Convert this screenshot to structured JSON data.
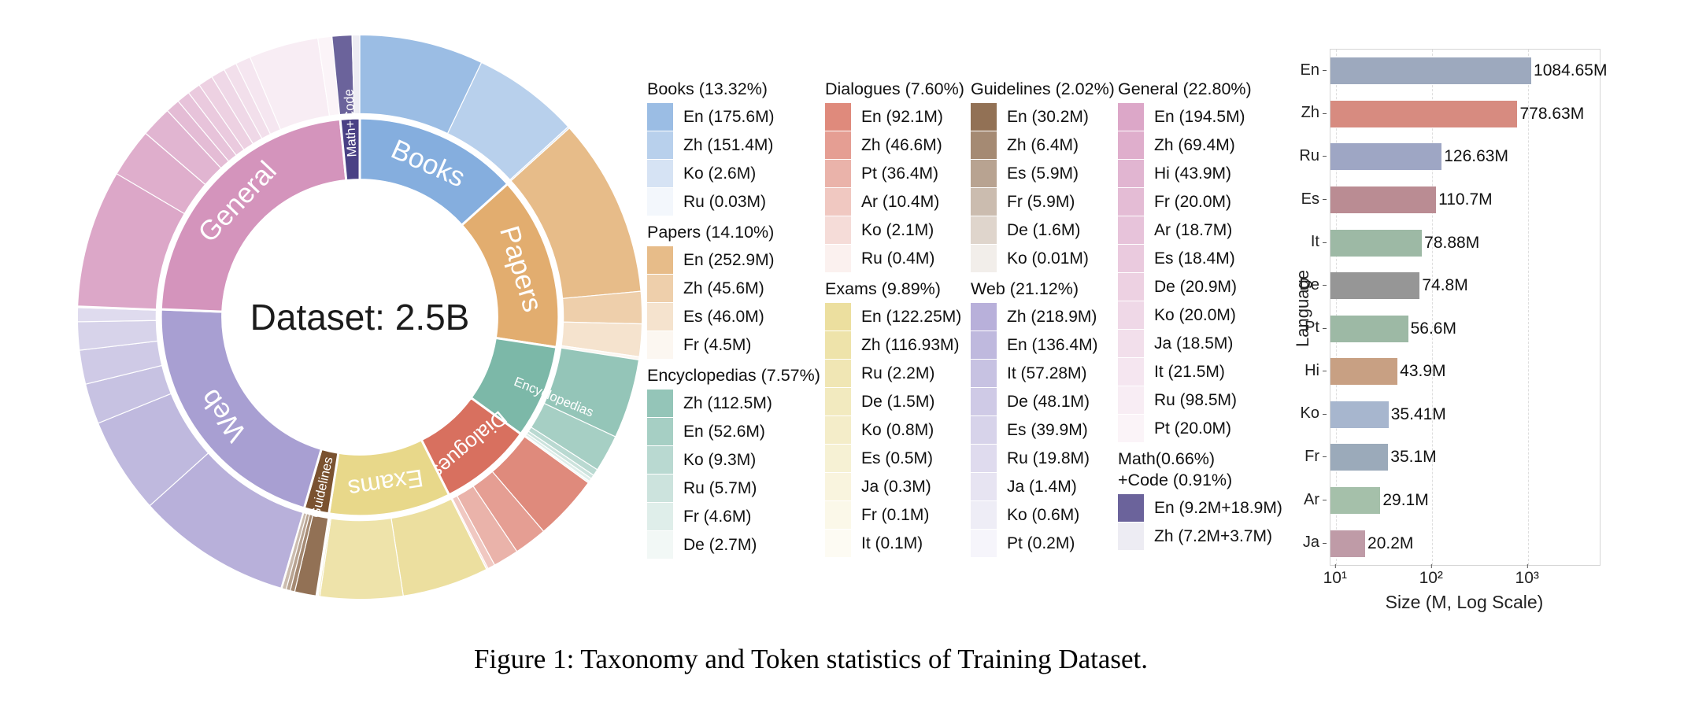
{
  "figure": {
    "caption": "Figure 1: Taxonomy and Token statistics of Training Dataset."
  },
  "chart_data": [
    {
      "type": "sunburst",
      "center_label": "Dataset: 2.5B",
      "rings": [
        "category",
        "language"
      ],
      "categories": [
        {
          "name": "Books",
          "legend_title": "Books (13.32%)",
          "pct": 13.32,
          "color": "#85aede",
          "legend_col": 0,
          "label_style": "tangential",
          "label_size": 36,
          "languages": [
            {
              "code": "En",
              "size_m": 175.6,
              "label": "En (175.6M)"
            },
            {
              "code": "Zh",
              "size_m": 151.4,
              "label": "Zh (151.4M)"
            },
            {
              "code": "Ko",
              "size_m": 2.6,
              "label": "Ko (2.6M)"
            },
            {
              "code": "Ru",
              "size_m": 0.03,
              "label": "Ru (0.03M)"
            }
          ]
        },
        {
          "name": "Papers",
          "legend_title": "Papers (14.10%)",
          "pct": 14.1,
          "color": "#e2ad6f",
          "legend_col": 0,
          "label_style": "tangential",
          "label_size": 36,
          "languages": [
            {
              "code": "En",
              "size_m": 252.9,
              "label": "En (252.9M)"
            },
            {
              "code": "Zh",
              "size_m": 45.6,
              "label": "Zh (45.6M)"
            },
            {
              "code": "Es",
              "size_m": 46.0,
              "label": "Es (46.0M)"
            },
            {
              "code": "Fr",
              "size_m": 4.5,
              "label": "Fr (4.5M)"
            }
          ]
        },
        {
          "name": "Encyclopedias",
          "legend_title": "Encyclopedias (7.57%)",
          "pct": 7.57,
          "color": "#7cb8a8",
          "legend_col": 0,
          "label_style": "radial-out",
          "label_size": 17,
          "label_radius": 272,
          "languages": [
            {
              "code": "Zh",
              "size_m": 112.5,
              "label": "Zh (112.5M)"
            },
            {
              "code": "En",
              "size_m": 52.6,
              "label": "En (52.6M)"
            },
            {
              "code": "Ko",
              "size_m": 9.3,
              "label": "Ko (9.3M)"
            },
            {
              "code": "Ru",
              "size_m": 5.7,
              "label": "Ru (5.7M)"
            },
            {
              "code": "Fr",
              "size_m": 4.6,
              "label": "Fr (4.6M)"
            },
            {
              "code": "De",
              "size_m": 2.7,
              "label": "De (2.7M)"
            }
          ]
        },
        {
          "name": "Dialogues",
          "legend_title": "Dialogues (7.60%)",
          "pct": 7.6,
          "color": "#d8705f",
          "legend_col": 1,
          "label_style": "tangential",
          "label_size": 27,
          "languages": [
            {
              "code": "En",
              "size_m": 92.1,
              "label": "En (92.1M)"
            },
            {
              "code": "Zh",
              "size_m": 46.6,
              "label": "Zh (46.6M)"
            },
            {
              "code": "Pt",
              "size_m": 36.4,
              "label": "Pt (36.4M)"
            },
            {
              "code": "Ar",
              "size_m": 10.4,
              "label": "Ar (10.4M)"
            },
            {
              "code": "Ko",
              "size_m": 2.1,
              "label": "Ko (2.1M)"
            },
            {
              "code": "Ru",
              "size_m": 0.4,
              "label": "Ru (0.4M)"
            }
          ]
        },
        {
          "name": "Exams",
          "legend_title": "Exams (9.89%)",
          "pct": 9.89,
          "color": "#e8d88a",
          "legend_col": 1,
          "label_style": "tangential",
          "label_size": 32,
          "languages": [
            {
              "code": "En",
              "size_m": 122.25,
              "label": "En (122.25M)"
            },
            {
              "code": "Zh",
              "size_m": 116.93,
              "label": "Zh (116.93M)"
            },
            {
              "code": "Ru",
              "size_m": 2.2,
              "label": "Ru (2.2M)"
            },
            {
              "code": "De",
              "size_m": 1.5,
              "label": "De (1.5M)"
            },
            {
              "code": "Ko",
              "size_m": 0.8,
              "label": "Ko (0.8M)"
            },
            {
              "code": "Es",
              "size_m": 0.5,
              "label": "Es (0.5M)"
            },
            {
              "code": "Ja",
              "size_m": 0.3,
              "label": "Ja (0.3M)"
            },
            {
              "code": "Fr",
              "size_m": 0.1,
              "label": "Fr (0.1M)"
            },
            {
              "code": "It",
              "size_m": 0.1,
              "label": "It (0.1M)"
            }
          ]
        },
        {
          "name": "Guidelines",
          "legend_title": "Guidelines (2.02%)",
          "pct": 2.02,
          "color": "#7a5230",
          "legend_col": 2,
          "label_style": "radial-in",
          "label_size": 17,
          "label_radius": 226,
          "languages": [
            {
              "code": "En",
              "size_m": 30.2,
              "label": "En (30.2M)"
            },
            {
              "code": "Zh",
              "size_m": 6.4,
              "label": "Zh (6.4M)"
            },
            {
              "code": "Es",
              "size_m": 5.9,
              "label": "Es (5.9M)"
            },
            {
              "code": "Fr",
              "size_m": 5.9,
              "label": "Fr (5.9M)"
            },
            {
              "code": "De",
              "size_m": 1.6,
              "label": "De (1.6M)"
            },
            {
              "code": "Ko",
              "size_m": 0.01,
              "label": "Ko (0.01M)"
            }
          ]
        },
        {
          "name": "Web",
          "legend_title": "Web (21.12%)",
          "pct": 21.12,
          "color": "#a89fd2",
          "legend_col": 2,
          "label_style": "tangential",
          "label_size": 36,
          "languages": [
            {
              "code": "Zh",
              "size_m": 218.9,
              "label": "Zh (218.9M)"
            },
            {
              "code": "En",
              "size_m": 136.4,
              "label": "En (136.4M)"
            },
            {
              "code": "It",
              "size_m": 57.28,
              "label": "It (57.28M)"
            },
            {
              "code": "De",
              "size_m": 48.1,
              "label": "De (48.1M)"
            },
            {
              "code": "Es",
              "size_m": 39.9,
              "label": "Es (39.9M)"
            },
            {
              "code": "Ru",
              "size_m": 19.8,
              "label": "Ru (19.8M)"
            },
            {
              "code": "Ja",
              "size_m": 1.4,
              "label": "Ja (1.4M)"
            },
            {
              "code": "Ko",
              "size_m": 0.6,
              "label": "Ko (0.6M)"
            },
            {
              "code": "Pt",
              "size_m": 0.2,
              "label": "Pt (0.2M)"
            }
          ]
        },
        {
          "name": "General",
          "legend_title": "General (22.80%)",
          "pct": 22.8,
          "color": "#d494bc",
          "legend_col": 3,
          "label_style": "tangential",
          "label_size": 36,
          "languages": [
            {
              "code": "En",
              "size_m": 194.5,
              "label": "En (194.5M)"
            },
            {
              "code": "Zh",
              "size_m": 69.4,
              "label": "Zh (69.4M)"
            },
            {
              "code": "Hi",
              "size_m": 43.9,
              "label": "Hi (43.9M)"
            },
            {
              "code": "Fr",
              "size_m": 20.0,
              "label": "Fr (20.0M)"
            },
            {
              "code": "Ar",
              "size_m": 18.7,
              "label": "Ar (18.7M)"
            },
            {
              "code": "Es",
              "size_m": 18.4,
              "label": "Es (18.4M)"
            },
            {
              "code": "De",
              "size_m": 20.9,
              "label": "De (20.9M)"
            },
            {
              "code": "Ko",
              "size_m": 20.0,
              "label": "Ko (20.0M)"
            },
            {
              "code": "Ja",
              "size_m": 18.5,
              "label": "Ja (18.5M)"
            },
            {
              "code": "It",
              "size_m": 21.5,
              "label": "It (21.5M)"
            },
            {
              "code": "Ru",
              "size_m": 98.5,
              "label": "Ru (98.5M)"
            },
            {
              "code": "Pt",
              "size_m": 20.0,
              "label": "Pt (20.0M)"
            }
          ]
        },
        {
          "name": "Math+Code",
          "legend_title": "Math(0.66%)\n+Code (0.91%)",
          "pct": 1.57,
          "color": "#4a4185",
          "legend_col": 3,
          "label_style": "radial-out",
          "label_size": 17,
          "label_radius": 252,
          "languages": [
            {
              "code": "En",
              "size_m": 28.1,
              "label": "En (9.2M+18.9M)"
            },
            {
              "code": "Zh",
              "size_m": 10.9,
              "label": "Zh (7.2M+3.7M)"
            }
          ]
        }
      ]
    },
    {
      "type": "bar",
      "orientation": "horizontal",
      "xlabel": "Size (M, Log Scale)",
      "ylabel": "Language",
      "x_scale": "log",
      "xlim": [
        8.8,
        5600
      ],
      "grid": true,
      "x_ticks": [
        {
          "value": 10,
          "label": "10¹"
        },
        {
          "value": 100,
          "label": "10²"
        },
        {
          "value": 1000,
          "label": "10³"
        }
      ],
      "categories": [
        "En",
        "Zh",
        "Ru",
        "Es",
        "It",
        "De",
        "Pt",
        "Hi",
        "Ko",
        "Fr",
        "Ar",
        "Ja"
      ],
      "values": [
        1084.65,
        778.63,
        126.63,
        110.7,
        78.88,
        74.8,
        56.6,
        43.9,
        35.41,
        35.1,
        29.1,
        20.2
      ],
      "labels": [
        "1084.65M",
        "778.63M",
        "126.63M",
        "110.7M",
        "78.88M",
        "74.8M",
        "56.6M",
        "43.9M",
        "35.41M",
        "35.1M",
        "29.1M",
        "20.2M"
      ],
      "colors": [
        "#9da9be",
        "#d78b80",
        "#9ea6c4",
        "#ba8c93",
        "#9db9a5",
        "#969696",
        "#9db9a5",
        "#c8a083",
        "#a7b6ce",
        "#9baaba",
        "#a5c0aa",
        "#bf9ba7"
      ]
    }
  ]
}
